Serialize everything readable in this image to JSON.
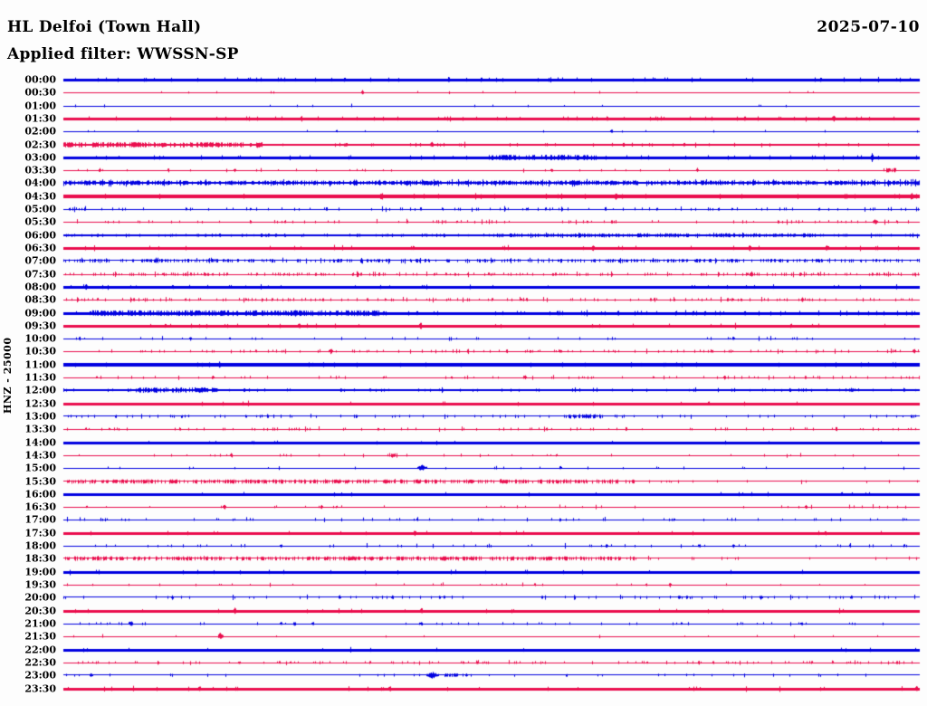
{
  "header": {
    "station_title": "HL Delfoi (Town Hall)",
    "date": "2025-07-10",
    "filter_label": "Applied filter: WWSSN-SP"
  },
  "chart_data": {
    "type": "helicorder",
    "title": "HL Delfoi (Town Hall)",
    "date": "2025-07-10",
    "applied_filter": "WWSSN-SP",
    "y_axis_label": "HNZ - 25000",
    "channel": "HNZ",
    "scale_value": "25000",
    "minutes_per_row": 30,
    "first_row_time": "00:00",
    "last_row_time": "23:30",
    "legend_position": "none",
    "grid": false,
    "colors": {
      "blue": "#0000E0",
      "red": "#EA0D4D"
    },
    "rows": [
      {
        "t": "00:00",
        "c": "b",
        "w": 3,
        "nd": 0.06,
        "na": 1.0,
        "ev": []
      },
      {
        "t": "00:30",
        "c": "r",
        "w": 1,
        "nd": 0.02,
        "na": 1.0,
        "ev": [
          {
            "x": 0.349,
            "a": 3,
            "wd": 2
          }
        ]
      },
      {
        "t": "01:00",
        "c": "b",
        "w": 1,
        "nd": 0.012,
        "na": 1.0,
        "ev": []
      },
      {
        "t": "01:30",
        "c": "r",
        "w": 3,
        "nd": 0.05,
        "na": 1.0,
        "ev": [
          {
            "x": 0.899,
            "a": 2,
            "wd": 3
          }
        ]
      },
      {
        "t": "02:00",
        "c": "b",
        "w": 1,
        "nd": 0.015,
        "na": 1.0,
        "ev": [
          {
            "x": 0.64,
            "a": 2,
            "wd": 2
          }
        ]
      },
      {
        "t": "02:30",
        "c": "r",
        "w": 2,
        "nd": 0.07,
        "na": 1.2,
        "ev": [
          {
            "x": 0.116,
            "a": 1.6,
            "wd": 220,
            "d": 0.5,
            "f": 1
          },
          {
            "x": 0.43,
            "a": 2.2,
            "wd": 3
          }
        ]
      },
      {
        "t": "03:00",
        "c": "b",
        "w": 3,
        "nd": 0.05,
        "na": 1.0,
        "ev": [
          {
            "x": 0.56,
            "a": 1.3,
            "wd": 120,
            "d": 0.5,
            "f": 1
          },
          {
            "x": 0.944,
            "a": 3,
            "wd": 2
          }
        ]
      },
      {
        "t": "03:30",
        "c": "r",
        "w": 1,
        "nd": 0.03,
        "na": 1.1,
        "ev": [
          {
            "x": 0.042,
            "a": 2,
            "wd": 2
          },
          {
            "x": 0.2,
            "a": 2,
            "wd": 2
          },
          {
            "x": 0.57,
            "a": 2,
            "wd": 2
          },
          {
            "x": 0.74,
            "a": 1.8,
            "wd": 2
          },
          {
            "x": 0.966,
            "a": 1.6,
            "wd": 18,
            "d": 0.6,
            "f": 1
          }
        ]
      },
      {
        "t": "04:00",
        "c": "b",
        "w": 2,
        "nd": 0.55,
        "na": 1.6,
        "ev": []
      },
      {
        "t": "04:30",
        "c": "r",
        "w": 4,
        "nd": 0.03,
        "na": 1.0,
        "ev": [
          {
            "x": 0.645,
            "a": 2,
            "wd": 2
          },
          {
            "x": 0.99,
            "a": 2,
            "wd": 2
          }
        ]
      },
      {
        "t": "05:00",
        "c": "b",
        "w": 1,
        "nd": 0.13,
        "na": 1.4,
        "ev": []
      },
      {
        "t": "05:30",
        "c": "r",
        "w": 1,
        "nd": 0.09,
        "na": 1.4,
        "ev": [
          {
            "x": 0.948,
            "a": 2.5,
            "wd": 5,
            "d": 0.8
          }
        ]
      },
      {
        "t": "06:00",
        "c": "b",
        "w": 1.5,
        "nd": 0.15,
        "na": 1.2,
        "ev": [
          {
            "x": 0.613,
            "a": 1.3,
            "wd": 220,
            "d": 0.4,
            "f": 1
          },
          {
            "x": 0.819,
            "a": 1.3,
            "wd": 110,
            "d": 0.4,
            "f": 1
          }
        ]
      },
      {
        "t": "06:30",
        "c": "r",
        "w": 3,
        "nd": 0.04,
        "na": 1.0,
        "ev": [
          {
            "x": 0.618,
            "a": 2,
            "wd": 2
          },
          {
            "x": 0.801,
            "a": 2,
            "wd": 2
          },
          {
            "x": 0.891,
            "a": 2,
            "wd": 2
          }
        ]
      },
      {
        "t": "07:00",
        "c": "b",
        "w": 1.3,
        "nd": 0.3,
        "na": 1.4,
        "ev": []
      },
      {
        "t": "07:30",
        "c": "r",
        "w": 1,
        "nd": 0.22,
        "na": 1.4,
        "ev": []
      },
      {
        "t": "08:00",
        "c": "b",
        "w": 2.5,
        "nd": 0.04,
        "na": 1.0,
        "ev": [
          {
            "x": 0.026,
            "a": 2.5,
            "wd": 2
          }
        ]
      },
      {
        "t": "08:30",
        "c": "r",
        "w": 1,
        "nd": 0.16,
        "na": 1.4,
        "ev": [
          {
            "x": 0.78,
            "a": 2,
            "wd": 4,
            "d": 0.8
          }
        ]
      },
      {
        "t": "09:00",
        "c": "b",
        "w": 3,
        "nd": 0.09,
        "na": 1.1,
        "ev": [
          {
            "x": 0.2,
            "a": 1.4,
            "wd": 320,
            "d": 0.5,
            "f": 1
          }
        ]
      },
      {
        "t": "09:30",
        "c": "r",
        "w": 3,
        "nd": 0.03,
        "na": 1.0,
        "ev": [
          {
            "x": 0.275,
            "a": 2,
            "wd": 2
          },
          {
            "x": 0.417,
            "a": 2.5,
            "wd": 2
          }
        ]
      },
      {
        "t": "10:00",
        "c": "b",
        "w": 1,
        "nd": 0.05,
        "na": 1.2,
        "ev": [
          {
            "x": 0.148,
            "a": 2,
            "wd": 2
          },
          {
            "x": 0.782,
            "a": 2,
            "wd": 2
          }
        ]
      },
      {
        "t": "10:30",
        "c": "r",
        "w": 1,
        "nd": 0.12,
        "na": 1.3,
        "ev": [
          {
            "x": 0.312,
            "a": 2.5,
            "wd": 3
          },
          {
            "x": 0.993,
            "a": 2.5,
            "wd": 3
          }
        ]
      },
      {
        "t": "11:00",
        "c": "b",
        "w": 3.5,
        "nd": 0.02,
        "na": 1.0,
        "ev": []
      },
      {
        "t": "11:30",
        "c": "r",
        "w": 1,
        "nd": 0.07,
        "na": 1.3,
        "ev": [
          {
            "x": 0.174,
            "a": 2,
            "wd": 2
          },
          {
            "x": 0.539,
            "a": 2.5,
            "wd": 2
          },
          {
            "x": 0.772,
            "a": 2,
            "wd": 2
          }
        ]
      },
      {
        "t": "12:00",
        "c": "b",
        "w": 1.5,
        "nd": 0.09,
        "na": 1.2,
        "ev": [
          {
            "x": 0.132,
            "a": 1.9,
            "wd": 90,
            "d": 0.6,
            "f": 1
          },
          {
            "x": 0.92,
            "a": 2,
            "wd": 3
          }
        ]
      },
      {
        "t": "12:30",
        "c": "r",
        "w": 3,
        "nd": 0.02,
        "na": 1.0,
        "ev": []
      },
      {
        "t": "13:00",
        "c": "b",
        "w": 1.3,
        "nd": 0.1,
        "na": 1.2,
        "ev": [
          {
            "x": 0.608,
            "a": 1.5,
            "wd": 36,
            "d": 0.6,
            "f": 1
          }
        ]
      },
      {
        "t": "13:30",
        "c": "r",
        "w": 1,
        "nd": 0.1,
        "na": 1.3,
        "ev": []
      },
      {
        "t": "14:00",
        "c": "b",
        "w": 2.5,
        "nd": 0.02,
        "na": 1.0,
        "ev": []
      },
      {
        "t": "14:30",
        "c": "r",
        "w": 1,
        "nd": 0.04,
        "na": 1.1,
        "ev": [
          {
            "x": 0.196,
            "a": 2.5,
            "wd": 2
          },
          {
            "x": 0.385,
            "a": 1.8,
            "wd": 8,
            "d": 0.9,
            "f": 1
          }
        ]
      },
      {
        "t": "15:00",
        "c": "b",
        "w": 1,
        "nd": 0.04,
        "na": 1.1,
        "ev": [
          {
            "x": 0.418,
            "a": 3,
            "wd": 9
          },
          {
            "x": 0.58,
            "a": 2,
            "wd": 2
          }
        ]
      },
      {
        "t": "15:30",
        "c": "r",
        "w": 1.2,
        "nd": 0.06,
        "na": 1.2,
        "ev": [
          {
            "x": 0.333,
            "a": 1.5,
            "wd": 630,
            "d": 0.45,
            "f": 1
          }
        ]
      },
      {
        "t": "16:00",
        "c": "b",
        "w": 3,
        "nd": 0.02,
        "na": 1.0,
        "ev": []
      },
      {
        "t": "16:30",
        "c": "r",
        "w": 1,
        "nd": 0.05,
        "na": 1.2,
        "ev": [
          {
            "x": 0.188,
            "a": 2.5,
            "wd": 3
          },
          {
            "x": 0.301,
            "a": 2,
            "wd": 2
          },
          {
            "x": 0.867,
            "a": 2,
            "wd": 2
          }
        ]
      },
      {
        "t": "17:00",
        "c": "b",
        "w": 1,
        "nd": 0.07,
        "na": 1.3,
        "ev": []
      },
      {
        "t": "17:30",
        "c": "r",
        "w": 3,
        "nd": 0.02,
        "na": 1.0,
        "ev": [
          {
            "x": 0.41,
            "a": 2,
            "wd": 2
          }
        ]
      },
      {
        "t": "18:00",
        "c": "b",
        "w": 1,
        "nd": 0.06,
        "na": 1.3,
        "ev": [
          {
            "x": 0.254,
            "a": 2,
            "wd": 2
          },
          {
            "x": 0.634,
            "a": 2,
            "wd": 2
          },
          {
            "x": 0.782,
            "a": 2,
            "wd": 2
          }
        ]
      },
      {
        "t": "18:30",
        "c": "r",
        "w": 1.2,
        "nd": 0.07,
        "na": 1.2,
        "ev": [
          {
            "x": 0.333,
            "a": 1.5,
            "wd": 630,
            "d": 0.45,
            "f": 1
          },
          {
            "x": 0.444,
            "a": 2.5,
            "wd": 9
          }
        ]
      },
      {
        "t": "19:00",
        "c": "b",
        "w": 3,
        "nd": 0.02,
        "na": 1.0,
        "ev": []
      },
      {
        "t": "19:30",
        "c": "r",
        "w": 1,
        "nd": 0.03,
        "na": 1.1,
        "ev": [
          {
            "x": 0.708,
            "a": 2.5,
            "wd": 2
          }
        ]
      },
      {
        "t": "20:00",
        "c": "b",
        "w": 1.2,
        "nd": 0.09,
        "na": 1.3,
        "ev": [
          {
            "x": 0.127,
            "a": 2,
            "wd": 2
          },
          {
            "x": 0.322,
            "a": 2,
            "wd": 2
          },
          {
            "x": 0.384,
            "a": 2,
            "wd": 2
          },
          {
            "x": 0.814,
            "a": 2,
            "wd": 3
          },
          {
            "x": 0.92,
            "a": 2,
            "wd": 2
          }
        ]
      },
      {
        "t": "20:30",
        "c": "r",
        "w": 3,
        "nd": 0.02,
        "na": 1.0,
        "ev": [
          {
            "x": 0.2,
            "a": 2,
            "wd": 2
          },
          {
            "x": 0.418,
            "a": 2,
            "wd": 2
          }
        ]
      },
      {
        "t": "21:00",
        "c": "b",
        "w": 1,
        "nd": 0.05,
        "na": 1.2,
        "ev": [
          {
            "x": 0.079,
            "a": 2.5,
            "wd": 3
          },
          {
            "x": 0.254,
            "a": 2,
            "wd": 2
          },
          {
            "x": 0.27,
            "a": 2,
            "wd": 2
          },
          {
            "x": 0.291,
            "a": 2,
            "wd": 2
          },
          {
            "x": 0.418,
            "a": 2,
            "wd": 2
          },
          {
            "x": 0.862,
            "a": 2,
            "wd": 2
          }
        ]
      },
      {
        "t": "21:30",
        "c": "r",
        "w": 1,
        "nd": 0.02,
        "na": 1.0,
        "ev": [
          {
            "x": 0.183,
            "a": 4,
            "wd": 5
          }
        ]
      },
      {
        "t": "22:00",
        "c": "b",
        "w": 3,
        "nd": 0.02,
        "na": 1.0,
        "ev": []
      },
      {
        "t": "22:30",
        "c": "r",
        "w": 1,
        "nd": 0.13,
        "na": 1.2,
        "ev": []
      },
      {
        "t": "23:00",
        "c": "b",
        "w": 1.2,
        "nd": 0.05,
        "na": 1.2,
        "ev": [
          {
            "x": 0.032,
            "a": 2,
            "wd": 3
          },
          {
            "x": 0.431,
            "a": 3,
            "wd": 13
          },
          {
            "x": 0.452,
            "a": 1.2,
            "wd": 14,
            "d": 0.9,
            "f": 1
          },
          {
            "x": 0.47,
            "a": 1.5,
            "wd": 2
          }
        ]
      },
      {
        "t": "23:30",
        "c": "r",
        "w": 3,
        "nd": 0.03,
        "na": 1.0,
        "ev": [
          {
            "x": 0.159,
            "a": 1.8,
            "wd": 2
          },
          {
            "x": 0.381,
            "a": 1.8,
            "wd": 2
          },
          {
            "x": 0.996,
            "a": 1.8,
            "wd": 2
          }
        ]
      }
    ]
  }
}
